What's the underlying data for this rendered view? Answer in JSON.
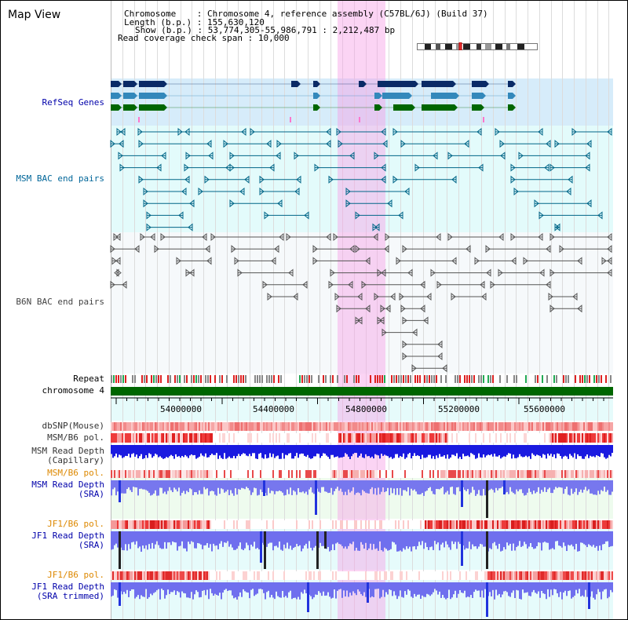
{
  "title": "Map View",
  "header": {
    "chromosome_key": "Chromosome",
    "chromosome_val": "Chromosome 4, reference assembly (C57BL/6J) (Build 37)",
    "length_key": "Length (b.p.)",
    "length_val": "155,630,120",
    "show_key": "Show (b.p.)",
    "show_val": "53,774,305-55,986,791 : 2,212,487 bp",
    "coverage_key": "Read coverage check span",
    "coverage_val": "10,000"
  },
  "tracks": {
    "refseq": "RefSeq Genes",
    "msm_bac": "MSM BAC end pairs",
    "b6n_bac": "B6N BAC end pairs",
    "repeat": "Repeat",
    "chromosome": "chromosome 4",
    "dbsnp": "dbSNP(Mouse)",
    "msm_b6_pol": "MSM/B6 pol.",
    "msm_read_cap_1": "MSM Read Depth",
    "msm_read_cap_2": "(Capillary)",
    "msm_b6_pol2": "MSM/B6 pol.",
    "msm_read_sra_1": "MSM Read Depth",
    "msm_read_sra_2": "(SRA)",
    "jf1_b6_pol": "JF1/B6 pol.",
    "jf1_read_sra_1": "JF1 Read Depth",
    "jf1_read_sra_2": "(SRA)",
    "jf1_b6_pol2": "JF1/B6 pol.",
    "jf1_read_trim_1": "JF1 Read Depth",
    "jf1_read_trim_2": "(SRA trimmed)"
  },
  "axis_ticks": [
    "54000000",
    "54400000",
    "54800000",
    "55200000",
    "55600000"
  ],
  "colors": {
    "refseq_label": "#0000aa",
    "msm_label": "#006699",
    "b6n_label": "#333333",
    "orange_label": "#dd8800",
    "blue_label": "#0000aa",
    "highlight": "#f7c8ee",
    "chromosome_bar": "#006600"
  }
}
